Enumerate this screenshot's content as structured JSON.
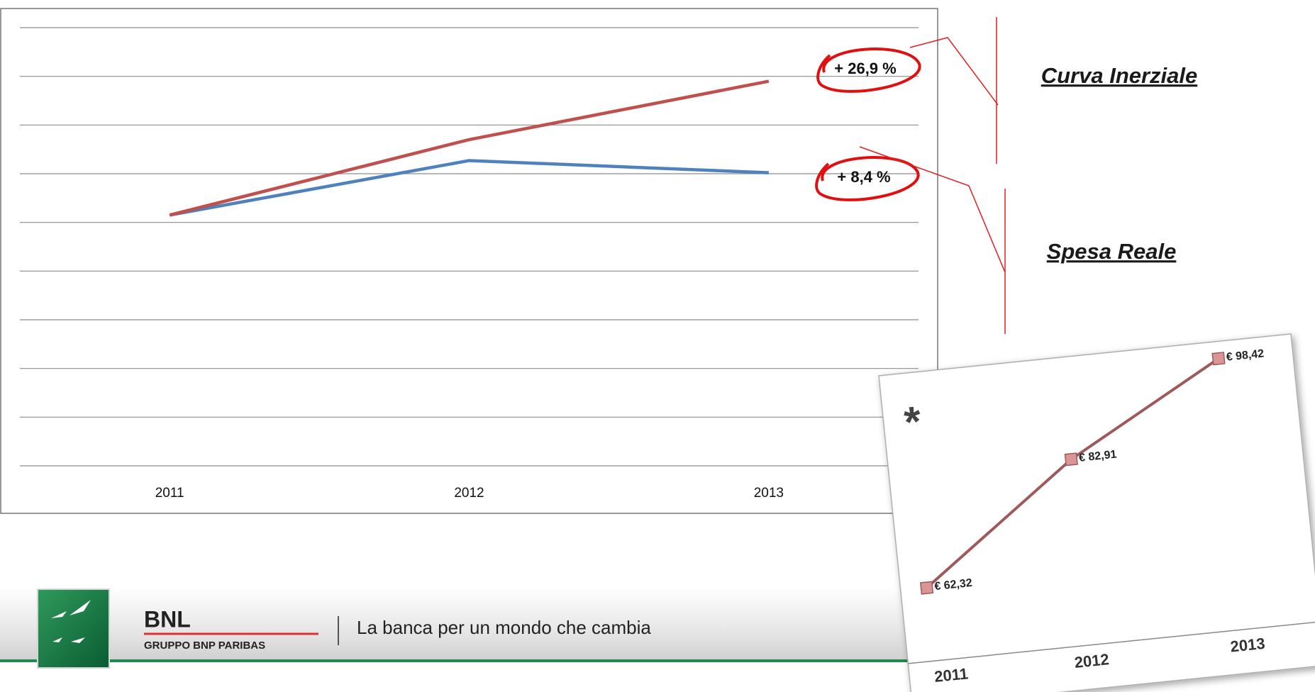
{
  "chart_data": [
    {
      "type": "line",
      "categories": [
        "2011",
        "2012",
        "2013"
      ],
      "series": [
        {
          "name": "Curva Inerziale",
          "color": "#c0504d",
          "values": [
            5.15,
            6.7,
            7.9
          ]
        },
        {
          "name": "Spesa Reale",
          "color": "#4f81bd",
          "values": [
            5.15,
            6.27,
            6.02
          ]
        }
      ],
      "annotations": [
        "+ 26,9 %",
        "+ 8,4 %"
      ],
      "ylim": [
        0,
        9
      ],
      "yticks": [
        0,
        1,
        2,
        3,
        4,
        5,
        6,
        7,
        8,
        9
      ],
      "grid": true
    },
    {
      "type": "line",
      "title": "*",
      "categories": [
        "2011",
        "2012",
        "2013"
      ],
      "values": [
        62.32,
        82.91,
        98.42
      ],
      "value_labels": [
        "€ 62,32",
        "€ 82,91",
        "€ 98,42"
      ],
      "color": "#9e5a5a",
      "marker_color": "#d99694",
      "ylim": [
        50,
        100
      ]
    }
  ],
  "footer": {
    "brand": "BNL",
    "group": "GRUPPO BNP PARIBAS",
    "tagline": "La banca per un mondo che cambia"
  }
}
